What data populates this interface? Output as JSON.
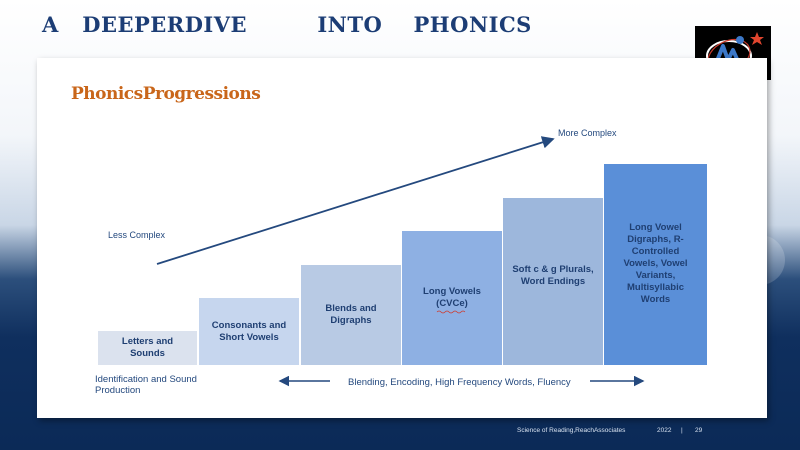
{
  "slide": {
    "title": "A   DEEPERDIVE         INTO    PHONICS"
  },
  "panel": {
    "title": "PhonicsProgressions",
    "more_complex": "More Complex",
    "less_complex": "Less Complex",
    "steps": [
      {
        "label": "Letters and Sounds",
        "color": "#dbe2ee"
      },
      {
        "label": "Consonants and Short Vowels",
        "color": "#c6d6ee"
      },
      {
        "label": "Blends and Digraphs",
        "color": "#b8cae4"
      },
      {
        "label": "Long Vowels (CVCe)",
        "color": "#8eb0e3"
      },
      {
        "label": "Soft c & g Plurals, Word Endings",
        "color": "#9db7dc"
      },
      {
        "label": "Long Vowel Digraphs, R-Controlled Vowels, Vowel Variants, Multisyllabic Words",
        "color": "#5a8fd8"
      }
    ],
    "bottom_left": "Identification and Sound Production",
    "bottom_center": "Blending, Encoding, High Frequency Words, Fluency"
  },
  "footer": {
    "source": "Science     of  Reading,ReachAssociates",
    "year": "2022",
    "separator": "|",
    "page": "29"
  }
}
